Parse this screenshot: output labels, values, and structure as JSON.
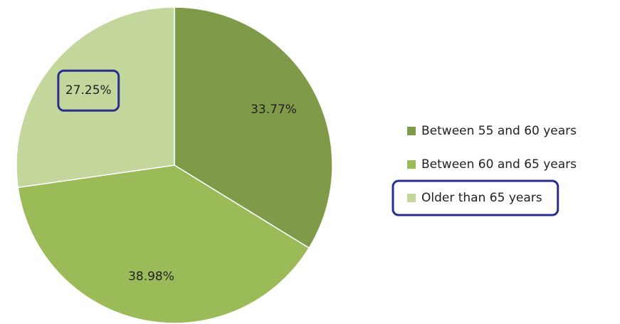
{
  "chart_data": {
    "type": "pie",
    "categories": [
      "Between 55 and 60 years",
      "Between 60 and 65 years",
      "Older than 65 years"
    ],
    "values": [
      33.77,
      38.98,
      27.25
    ],
    "value_labels": [
      "33.77%",
      "38.98%",
      "27.25%"
    ],
    "colors": [
      "#7f9a48",
      "#9bbb59",
      "#c3d69b"
    ],
    "legend": "right"
  }
}
